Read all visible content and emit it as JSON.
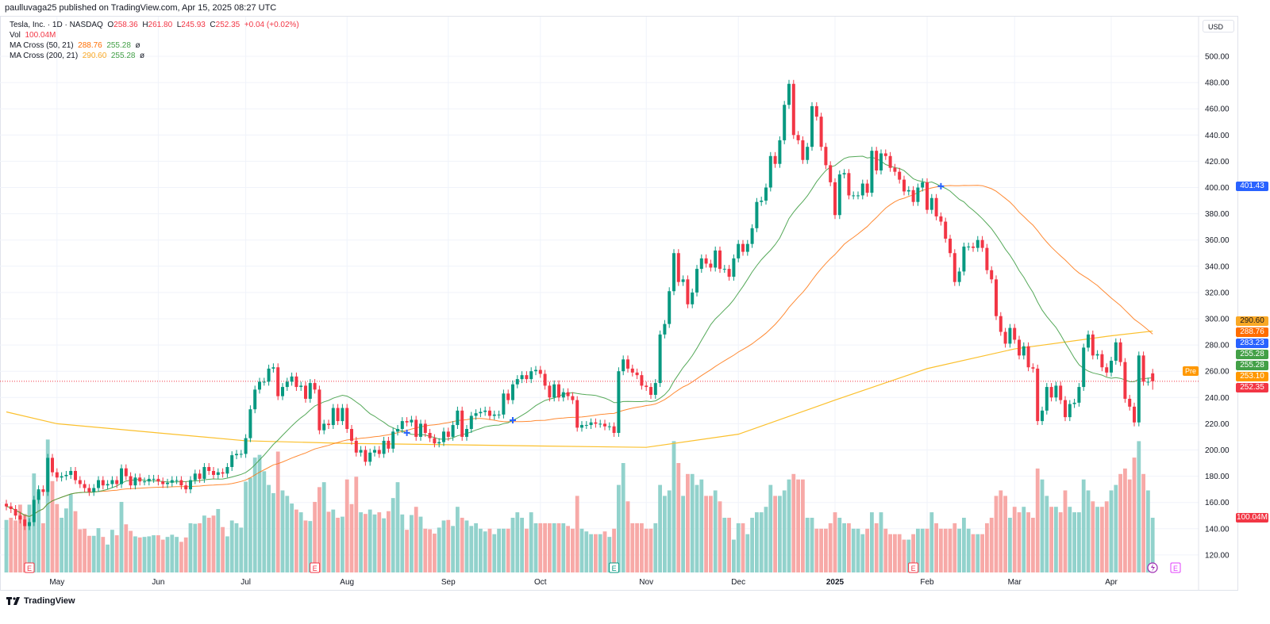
{
  "published": "paulluvaga25 published on TradingView.com, Apr 15, 2025 08:27 UTC",
  "legend": {
    "symbol": "Tesla, Inc. · 1D · NASDAQ",
    "o_label": "O",
    "o": "258.36",
    "h_label": "H",
    "h": "261.80",
    "l_label": "L",
    "l": "245.93",
    "c_label": "C",
    "c": "252.35",
    "change": "+0.04 (+0.02%)",
    "vol_label": "Vol",
    "vol": "100.04M",
    "ma1_label": "MA Cross (50, 21)",
    "ma1_v1": "288.76",
    "ma1_v2": "255.28",
    "ma1_sym": "ø",
    "ma2_label": "MA Cross (200, 21)",
    "ma2_v1": "290.60",
    "ma2_v2": "255.28",
    "ma2_sym": "ø"
  },
  "currency": "USD",
  "axis_tags": [
    {
      "text": "401.43",
      "color": "#2962ff"
    },
    {
      "text": "290.60",
      "color": "#f9a825"
    },
    {
      "text": "288.76",
      "color": "#ff6d00"
    },
    {
      "text": "283.23",
      "color": "#2962ff"
    },
    {
      "text": "255.28",
      "color": "#43a047"
    },
    {
      "text": "255.28",
      "color": "#43a047"
    },
    {
      "text": "253.10",
      "color": "#ff9800"
    },
    {
      "text": "252.35",
      "color": "#f23645"
    },
    {
      "text": "100.04M",
      "color": "#f23645"
    }
  ],
  "pre_label": "Pre",
  "footer": "TradingView",
  "colors": {
    "up": "#089981",
    "down": "#f23645",
    "vol_up": "#92d2cc",
    "vol_down": "#f7a9a7",
    "ma21": "#43a047",
    "ma50": "#ff6d00",
    "ma200": "#fbc02d",
    "cross": "#2962ff",
    "earnings_future": "#e040fb"
  },
  "chart_data": {
    "type": "candlestick",
    "title": "Tesla, Inc. · 1D · NASDAQ",
    "ylim": [
      110,
      505
    ],
    "y_ticks": [
      "500.00",
      "480.00",
      "460.00",
      "440.00",
      "420.00",
      "400.00",
      "380.00",
      "360.00",
      "340.00",
      "320.00",
      "300.00",
      "280.00",
      "260.00",
      "240.00",
      "220.00",
      "200.00",
      "180.00",
      "160.00",
      "140.00",
      "120.00"
    ],
    "x_ticks": [
      "May",
      "Jun",
      "Jul",
      "Aug",
      "Sep",
      "Oct",
      "Nov",
      "Dec",
      "2025",
      "Feb",
      "Mar",
      "Apr"
    ],
    "grid": true,
    "last_candle": {
      "open": 258.36,
      "high": 261.8,
      "low": 245.93,
      "close": 252.35,
      "volume_m": 100.04
    },
    "close": [
      157,
      155,
      150,
      147,
      142,
      145,
      162,
      170,
      168,
      194,
      183,
      179,
      180,
      181,
      184,
      177,
      174,
      171,
      168,
      171,
      177,
      173,
      174,
      177,
      174,
      186,
      180,
      173,
      179,
      176,
      176,
      178,
      178,
      176,
      174,
      175,
      177,
      177,
      173,
      170,
      177,
      182,
      178,
      187,
      184,
      181,
      183,
      182,
      187,
      196,
      197,
      197,
      209,
      231,
      246,
      252,
      252,
      262,
      263,
      241,
      248,
      252,
      256,
      248,
      249,
      239,
      251,
      246,
      215,
      220,
      219,
      232,
      222,
      232,
      216,
      207,
      198,
      200,
      191,
      198,
      200,
      197,
      207,
      201,
      214,
      216,
      222,
      221,
      223,
      210,
      220,
      213,
      209,
      205,
      206,
      214,
      210,
      219,
      230,
      210,
      216,
      226,
      228,
      229,
      230,
      226,
      227,
      227,
      243,
      238,
      250,
      254,
      257,
      254,
      260,
      261,
      258,
      249,
      240,
      250,
      240,
      244,
      241,
      238,
      217,
      219,
      219,
      221,
      220,
      220,
      218,
      218,
      213,
      260,
      269,
      262,
      259,
      257,
      249,
      248,
      242,
      251,
      288,
      296,
      321,
      350,
      328,
      330,
      311,
      320,
      338,
      346,
      342,
      339,
      352,
      338,
      338,
      332,
      346,
      357,
      351,
      357,
      369,
      389,
      390,
      400,
      424,
      418,
      436,
      463,
      479,
      440,
      436,
      421,
      431,
      462,
      454,
      431,
      417,
      404,
      379,
      410,
      411,
      394,
      394,
      394,
      403,
      396,
      428,
      413,
      426,
      424,
      415,
      412,
      406,
      397,
      398,
      389,
      400,
      404,
      383,
      392,
      378,
      374,
      361,
      350,
      328,
      336,
      355,
      355,
      354,
      360,
      354,
      337,
      330,
      302,
      290,
      281,
      293,
      284,
      272,
      279,
      263,
      262,
      222,
      230,
      248,
      240,
      249,
      238,
      225,
      235,
      236,
      248,
      278,
      288,
      272,
      273,
      263,
      259,
      268,
      282,
      267,
      239,
      233,
      221,
      272,
      252,
      252,
      252.35
    ],
    "volume_m": [
      96,
      100,
      95,
      124,
      107,
      124,
      181,
      148,
      90,
      243,
      167,
      125,
      100,
      117,
      143,
      112,
      79,
      80,
      67,
      67,
      81,
      65,
      51,
      78,
      68,
      129,
      88,
      76,
      66,
      64,
      65,
      66,
      68,
      68,
      60,
      65,
      69,
      65,
      56,
      64,
      90,
      89,
      90,
      104,
      100,
      104,
      116,
      83,
      66,
      95,
      90,
      82,
      166,
      173,
      210,
      215,
      185,
      160,
      145,
      221,
      150,
      140,
      126,
      115,
      110,
      95,
      94,
      129,
      156,
      165,
      111,
      115,
      100,
      102,
      170,
      125,
      175,
      110,
      107,
      115,
      106,
      110,
      99,
      112,
      136,
      165,
      106,
      78,
      105,
      120,
      102,
      80,
      79,
      71,
      82,
      95,
      96,
      85,
      120,
      100,
      95,
      85,
      90,
      80,
      75,
      80,
      70,
      80,
      80,
      80,
      100,
      110,
      100,
      80,
      110,
      90,
      90,
      90,
      90,
      90,
      90,
      90,
      85,
      80,
      140,
      80,
      75,
      70,
      70,
      70,
      75,
      65,
      80,
      160,
      200,
      130,
      90,
      90,
      90,
      80,
      80,
      90,
      160,
      140,
      150,
      240,
      200,
      140,
      180,
      180,
      160,
      170,
      140,
      140,
      150,
      130,
      100,
      100,
      60,
      90,
      90,
      70,
      100,
      110,
      110,
      120,
      160,
      140,
      140,
      150,
      170,
      180,
      170,
      170,
      100,
      100,
      80,
      80,
      80,
      90,
      110,
      100,
      90,
      90,
      80,
      80,
      70,
      80,
      110,
      90,
      110,
      80,
      70,
      70,
      70,
      60,
      60,
      70,
      80,
      80,
      80,
      110,
      90,
      80,
      80,
      80,
      90,
      80,
      100,
      80,
      70,
      70,
      70,
      90,
      100,
      140,
      150,
      140,
      100,
      120,
      110,
      120,
      110,
      100,
      190,
      170,
      140,
      120,
      120,
      110,
      150,
      120,
      110,
      110,
      170,
      150,
      130,
      120,
      120,
      130,
      150,
      160,
      180,
      190,
      170,
      210,
      240,
      180,
      150,
      100.04
    ],
    "ma200_at_x_ticks": {
      "start": 229,
      "May": 220,
      "Jun": 213,
      "Jul": 207,
      "Aug": 205,
      "Sep": 204,
      "Oct": 203,
      "Nov": 202,
      "Dec": 212,
      "2025": 238,
      "Feb": 262,
      "Mar": 277,
      "Apr": 287,
      "end": 290.6
    },
    "series": [
      {
        "name": "MA 21"
      },
      {
        "name": "MA 50"
      },
      {
        "name": "MA 200"
      }
    ],
    "earnings_markers": [
      "E",
      "E",
      "E",
      "E",
      "E"
    ]
  }
}
